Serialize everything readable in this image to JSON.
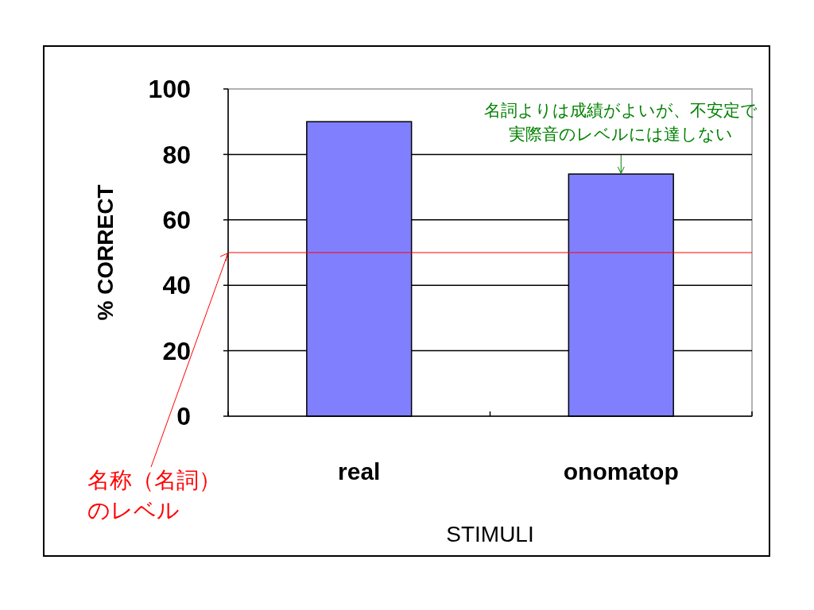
{
  "chart_data": {
    "type": "bar",
    "xlabel": "STIMULI",
    "ylabel": "% CORRECT",
    "categories": [
      "real",
      "onomatop"
    ],
    "values": [
      90,
      74
    ],
    "color": "#8080ff",
    "ylim": [
      0,
      100
    ],
    "yticks": [
      0,
      20,
      40,
      60,
      80,
      100
    ],
    "grid": "y",
    "ref_lines": [
      {
        "axis": "y",
        "value": 50,
        "label": "名称（名詞）のレベル",
        "color": "#ff0000"
      }
    ],
    "annotations": [
      {
        "text": "名詞よりは成績がよいが、不安定で実際音のレベルには達しない",
        "x": "onomatop",
        "y": 74
      }
    ]
  }
}
